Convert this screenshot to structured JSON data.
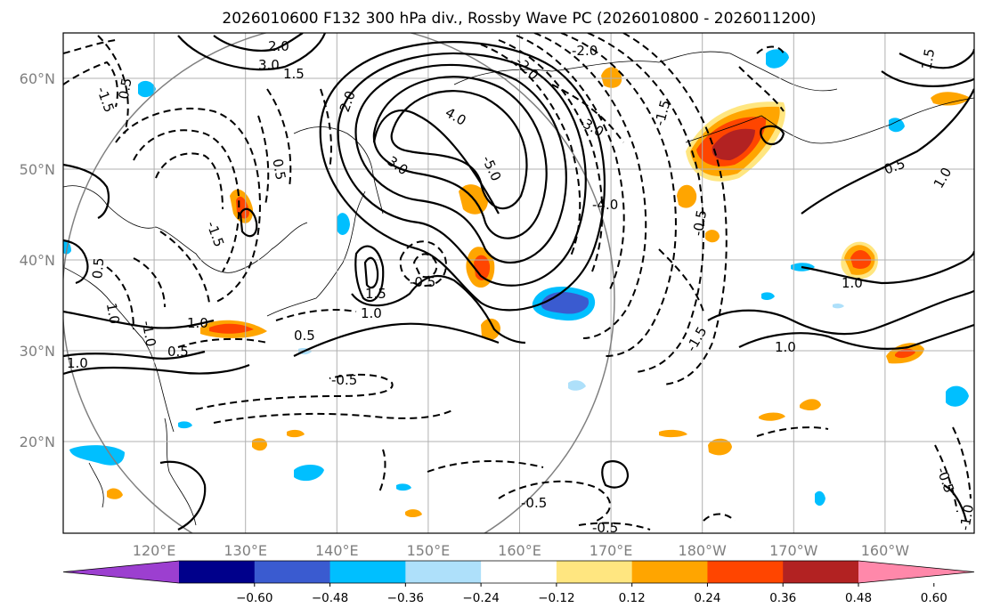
{
  "chart_data": {
    "type": "contour map",
    "title": "2026010600 F132 300 hPa div., Rossby Wave PC (2026010800 - 2026011200)",
    "x_ticks": [
      "120°E",
      "130°E",
      "140°E",
      "150°E",
      "160°E",
      "170°E",
      "180°W",
      "170°W",
      "160°W"
    ],
    "y_ticks": [
      "20°N",
      "30°N",
      "40°N",
      "50°N",
      "60°N"
    ],
    "grid": true,
    "colorbar": {
      "orientation": "horizontal",
      "extend": "both",
      "ticks": [
        "−0.60",
        "−0.48",
        "−0.36",
        "−0.24",
        "−0.12",
        "0.12",
        "0.24",
        "0.36",
        "0.48",
        "0.60"
      ],
      "colors": [
        "#9c3fd0",
        "#00008b",
        "#3a5bd0",
        "#00bfff",
        "#aee0fa",
        "#ffffff",
        "#ffe680",
        "#ffa500",
        "#ff4500",
        "#b22222",
        "#ff88aa"
      ]
    },
    "contour_labels": [
      "2.0",
      "3.0",
      "4.0",
      "1.5",
      "1.0",
      "0.5",
      "-0.5",
      "-1.0",
      "-1.5",
      "-2.0",
      "-3.0",
      "-4.0",
      "-5.0"
    ],
    "shaded_features": [
      {
        "label": "strong convergence/positive max",
        "color": "#b22222"
      },
      {
        "label": "negative minimum",
        "color": "#3a5bd0"
      }
    ]
  }
}
